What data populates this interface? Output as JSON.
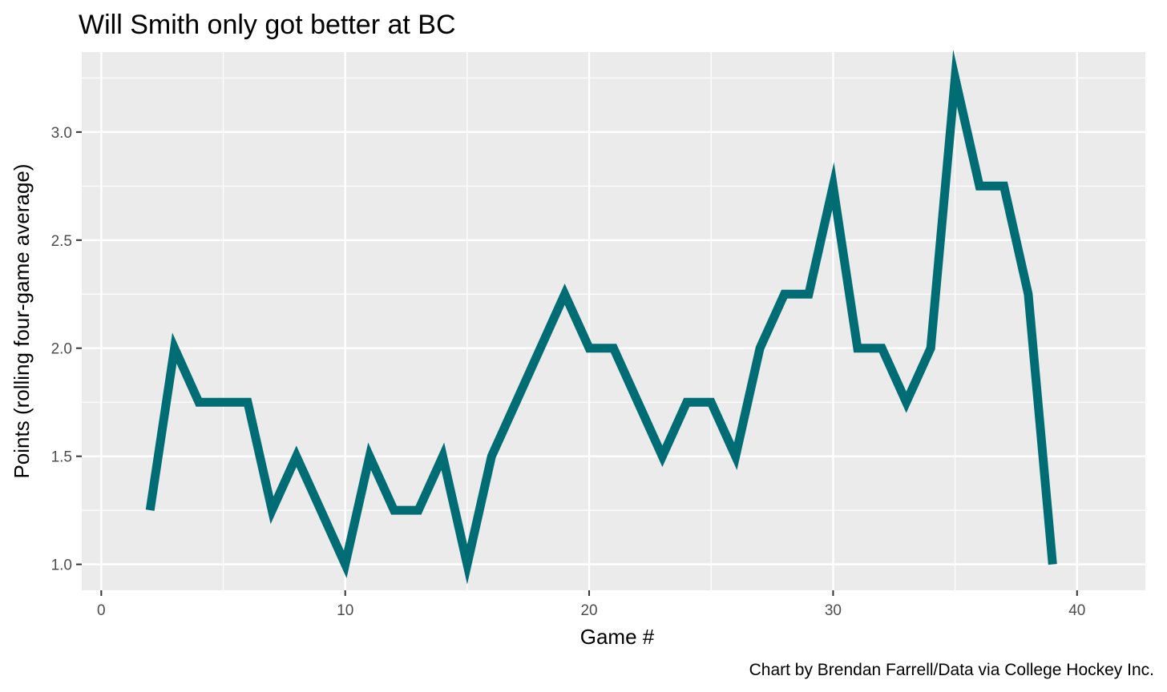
{
  "chart_data": {
    "type": "line",
    "title": "Will Smith only got better at BC",
    "caption": "Chart by Brendan Farrell/Data via College Hockey Inc.",
    "xlabel": "Game #",
    "ylabel": "Points (rolling four-game average)",
    "xlim": [
      -0.8,
      42.8
    ],
    "ylim": [
      0.88,
      3.37
    ],
    "x_ticks": [
      0,
      10,
      20,
      30,
      40
    ],
    "x_tick_labels": [
      "0",
      "10",
      "20",
      "30",
      "40"
    ],
    "y_ticks": [
      1.0,
      1.5,
      2.0,
      2.5,
      3.0
    ],
    "y_tick_labels": [
      "1.0",
      "1.5",
      "2.0",
      "2.5",
      "3.0"
    ],
    "grid": true,
    "line_color": "#006d75",
    "panel_color": "#ebebeb",
    "grid_color": "#ffffff",
    "series": [
      {
        "x": [
          2,
          3,
          4,
          5,
          6,
          7,
          8,
          9,
          10,
          11,
          12,
          13,
          14,
          15,
          16,
          17,
          18,
          19,
          20,
          21,
          22,
          23,
          24,
          25,
          26,
          27,
          28,
          29,
          30,
          31,
          32,
          33,
          34,
          35,
          36,
          37,
          38,
          39
        ],
        "y": [
          1.25,
          2.0,
          1.75,
          1.75,
          1.75,
          1.25,
          1.5,
          1.25,
          1.0,
          1.5,
          1.25,
          1.25,
          1.5,
          1.0,
          1.5,
          1.75,
          2.0,
          2.25,
          2.0,
          2.0,
          1.75,
          1.5,
          1.75,
          1.75,
          1.5,
          2.0,
          2.25,
          2.25,
          2.75,
          2.0,
          2.0,
          1.75,
          2.0,
          3.25,
          2.75,
          2.75,
          2.25,
          1.0
        ]
      }
    ]
  }
}
